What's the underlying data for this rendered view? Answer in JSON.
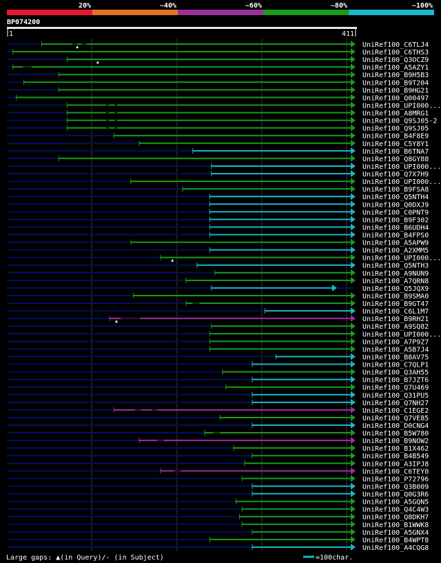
{
  "chart_data": {
    "type": "alignment-coverage",
    "query_id": "BP074200",
    "query_start": 1,
    "query_end": 411,
    "legend": {
      "identity_bins": [
        {
          "label": "20%",
          "color": "#e8162e"
        },
        {
          "label": "~40%",
          "color": "#e07420"
        },
        {
          "label": "~60%",
          "color": "#9b2f9a"
        },
        {
          "label": "~80%",
          "color": "#1a9b1a"
        },
        {
          "label": "~100%",
          "color": "#18b8c8"
        }
      ],
      "gap_legend": "Large gaps: ▲(in Query)/- (in Subject)",
      "scale_legend": "=100char."
    },
    "colors": {
      "background": "#000000",
      "shadow": "#001060",
      "grid": "#3a3a3a",
      "green": "#1a9b1a",
      "cyan": "#18b8c8",
      "magenta": "#9b2f9a",
      "query_bar": "#e6e6e6"
    },
    "hits": [
      {
        "name": "UniRef100_C6TLJ4",
        "start": 42,
        "end": 411,
        "color": "green",
        "gaps": [
          [
            78,
            84
          ],
          [
            89,
            95
          ]
        ],
        "qmarks": [
          84
        ]
      },
      {
        "name": "UniRef100_C6THS3",
        "start": 8,
        "end": 411,
        "color": "green",
        "gaps": [],
        "qmarks": []
      },
      {
        "name": "UniRef100_Q3OCZ9",
        "start": 72,
        "end": 411,
        "color": "green",
        "gaps": [],
        "qmarks": [
          108
        ]
      },
      {
        "name": "UniRef100_A5AZY1",
        "start": 8,
        "end": 411,
        "color": "green",
        "gaps": [
          [
            20,
            30
          ]
        ],
        "qmarks": []
      },
      {
        "name": "UniRef100_B9H5B3",
        "start": 62,
        "end": 411,
        "color": "green",
        "gaps": [],
        "qmarks": []
      },
      {
        "name": "UniRef100_B9T204",
        "start": 21,
        "end": 411,
        "color": "green",
        "gaps": [],
        "qmarks": []
      },
      {
        "name": "UniRef100_B9HG21",
        "start": 62,
        "end": 411,
        "color": "green",
        "gaps": [],
        "qmarks": []
      },
      {
        "name": "UniRef100_Q00497",
        "start": 12,
        "end": 411,
        "color": "green",
        "gaps": [],
        "qmarks": []
      },
      {
        "name": "UniRef100_UPI000...",
        "start": 72,
        "end": 411,
        "color": "green",
        "gaps": [
          [
            118,
            121
          ],
          [
            128,
            131
          ]
        ],
        "qmarks": []
      },
      {
        "name": "UniRef100_A8MRG1",
        "start": 72,
        "end": 411,
        "color": "green",
        "gaps": [
          [
            118,
            121
          ],
          [
            128,
            131
          ]
        ],
        "qmarks": []
      },
      {
        "name": "UniRef100_Q9SJ05-2",
        "start": 72,
        "end": 411,
        "color": "green",
        "gaps": [
          [
            118,
            121
          ],
          [
            128,
            131
          ]
        ],
        "qmarks": []
      },
      {
        "name": "UniRef100_Q9SJ05",
        "start": 72,
        "end": 411,
        "color": "green",
        "gaps": [
          [
            118,
            121
          ],
          [
            128,
            131
          ]
        ],
        "qmarks": []
      },
      {
        "name": "UniRef100_B4F8E9",
        "start": 127,
        "end": 411,
        "color": "green",
        "gaps": [],
        "qmarks": []
      },
      {
        "name": "UniRef100_C5Y8Y1",
        "start": 157,
        "end": 411,
        "color": "green",
        "gaps": [],
        "qmarks": []
      },
      {
        "name": "UniRef100_B6TNA7",
        "start": 220,
        "end": 411,
        "color": "cyan",
        "gaps": [],
        "qmarks": []
      },
      {
        "name": "UniRef100_Q8GY88",
        "start": 62,
        "end": 411,
        "color": "green",
        "gaps": [],
        "qmarks": []
      },
      {
        "name": "UniRef100_UPI000...",
        "start": 242,
        "end": 411,
        "color": "cyan",
        "gaps": [],
        "qmarks": []
      },
      {
        "name": "UniRef100_Q7X7H9",
        "start": 242,
        "end": 411,
        "color": "cyan",
        "gaps": [],
        "qmarks": []
      },
      {
        "name": "UniRef100_UPI000...",
        "start": 147,
        "end": 411,
        "color": "green",
        "gaps": [],
        "qmarks": []
      },
      {
        "name": "UniRef100_B9FSA8",
        "start": 208,
        "end": 411,
        "color": "green",
        "gaps": [],
        "qmarks": []
      },
      {
        "name": "UniRef100_Q5NTH4",
        "start": 240,
        "end": 411,
        "color": "cyan",
        "gaps": [],
        "qmarks": []
      },
      {
        "name": "UniRef100_Q0DXJ9",
        "start": 240,
        "end": 411,
        "color": "cyan",
        "gaps": [],
        "qmarks": []
      },
      {
        "name": "UniRef100_C0PNT9",
        "start": 240,
        "end": 411,
        "color": "cyan",
        "gaps": [],
        "qmarks": []
      },
      {
        "name": "UniRef100_B9F302",
        "start": 240,
        "end": 411,
        "color": "cyan",
        "gaps": [],
        "qmarks": []
      },
      {
        "name": "UniRef100_B6UDH4",
        "start": 240,
        "end": 411,
        "color": "cyan",
        "gaps": [],
        "qmarks": []
      },
      {
        "name": "UniRef100_B4FPS0",
        "start": 240,
        "end": 411,
        "color": "cyan",
        "gaps": [],
        "qmarks": []
      },
      {
        "name": "UniRef100_A5APW9",
        "start": 147,
        "end": 411,
        "color": "green",
        "gaps": [],
        "qmarks": []
      },
      {
        "name": "UniRef100_A2XMM5",
        "start": 240,
        "end": 411,
        "color": "cyan",
        "gaps": [],
        "qmarks": []
      },
      {
        "name": "UniRef100_UPI000...",
        "start": 182,
        "end": 411,
        "color": "green",
        "gaps": [],
        "qmarks": [
          196
        ]
      },
      {
        "name": "UniRef100_Q5NTH3",
        "start": 225,
        "end": 411,
        "color": "cyan",
        "gaps": [],
        "qmarks": []
      },
      {
        "name": "UniRef100_A9NUN9",
        "start": 246,
        "end": 411,
        "color": "green",
        "gaps": [],
        "qmarks": []
      },
      {
        "name": "UniRef100_A7QRN8",
        "start": 212,
        "end": 411,
        "color": "green",
        "gaps": [],
        "qmarks": []
      },
      {
        "name": "UniRef100_Q5JQX9",
        "start": 242,
        "end": 389,
        "color": "cyan",
        "gaps": [],
        "qmarks": []
      },
      {
        "name": "UniRef100_B9SMA0",
        "start": 150,
        "end": 411,
        "color": "green",
        "gaps": [],
        "qmarks": []
      },
      {
        "name": "UniRef100_B9GT47",
        "start": 212,
        "end": 411,
        "color": "green",
        "gaps": [
          [
            220,
            228
          ]
        ],
        "qmarks": []
      },
      {
        "name": "UniRef100_C6L1M7",
        "start": 305,
        "end": 411,
        "color": "cyan",
        "gaps": [],
        "qmarks": []
      },
      {
        "name": "UniRef100_B9RH21",
        "start": 122,
        "end": 411,
        "color": "magenta",
        "gaps": [
          [
            135,
            158
          ]
        ],
        "qmarks": [
          130
        ]
      },
      {
        "name": "UniRef100_A9SQ82",
        "start": 242,
        "end": 411,
        "color": "green",
        "gaps": [],
        "qmarks": []
      },
      {
        "name": "UniRef100_UPI000...",
        "start": 240,
        "end": 411,
        "color": "green",
        "gaps": [],
        "qmarks": []
      },
      {
        "name": "UniRef100_A7P9Z7",
        "start": 240,
        "end": 411,
        "color": "green",
        "gaps": [],
        "qmarks": []
      },
      {
        "name": "UniRef100_A5B7J4",
        "start": 240,
        "end": 411,
        "color": "green",
        "gaps": [],
        "qmarks": []
      },
      {
        "name": "UniRef100_B8AV75",
        "start": 318,
        "end": 411,
        "color": "cyan",
        "gaps": [],
        "qmarks": []
      },
      {
        "name": "UniRef100_C7QLP1",
        "start": 290,
        "end": 411,
        "color": "cyan",
        "gaps": [],
        "qmarks": []
      },
      {
        "name": "UniRef100_Q3AH55",
        "start": 255,
        "end": 411,
        "color": "green",
        "gaps": [],
        "qmarks": []
      },
      {
        "name": "UniRef100_B7JZT6",
        "start": 290,
        "end": 411,
        "color": "cyan",
        "gaps": [],
        "qmarks": []
      },
      {
        "name": "UniRef100_Q7U469",
        "start": 259,
        "end": 411,
        "color": "green",
        "gaps": [],
        "qmarks": []
      },
      {
        "name": "UniRef100_Q31PU5",
        "start": 290,
        "end": 411,
        "color": "cyan",
        "gaps": [],
        "qmarks": []
      },
      {
        "name": "UniRef100_Q7NH27",
        "start": 290,
        "end": 411,
        "color": "cyan",
        "gaps": [],
        "qmarks": []
      },
      {
        "name": "UniRef100_C1EGE2",
        "start": 127,
        "end": 411,
        "color": "magenta",
        "gaps": [
          [
            152,
            159
          ],
          [
            172,
            178
          ]
        ],
        "qmarks": []
      },
      {
        "name": "UniRef100_Q7VE85",
        "start": 252,
        "end": 411,
        "color": "green",
        "gaps": [],
        "qmarks": []
      },
      {
        "name": "UniRef100_D0CNG4",
        "start": 290,
        "end": 411,
        "color": "cyan",
        "gaps": [],
        "qmarks": []
      },
      {
        "name": "UniRef100_B5W780",
        "start": 234,
        "end": 411,
        "color": "green",
        "gaps": [
          [
            244,
            252
          ]
        ],
        "qmarks": []
      },
      {
        "name": "UniRef100_B9NOW2",
        "start": 157,
        "end": 411,
        "color": "magenta",
        "gaps": [
          [
            178,
            186
          ]
        ],
        "qmarks": []
      },
      {
        "name": "UniRef100_B1X462",
        "start": 268,
        "end": 411,
        "color": "green",
        "gaps": [],
        "qmarks": []
      },
      {
        "name": "UniRef100_B4B549",
        "start": 290,
        "end": 411,
        "color": "green",
        "gaps": [],
        "qmarks": []
      },
      {
        "name": "UniRef100_A3IPJ8",
        "start": 281,
        "end": 411,
        "color": "green",
        "gaps": [],
        "qmarks": []
      },
      {
        "name": "UniRef100_C6TEY0",
        "start": 182,
        "end": 411,
        "color": "magenta",
        "gaps": [
          [
            198,
            206
          ]
        ],
        "qmarks": []
      },
      {
        "name": "UniRef100_P72796",
        "start": 278,
        "end": 411,
        "color": "green",
        "gaps": [],
        "qmarks": []
      },
      {
        "name": "UniRef100_Q3B009",
        "start": 290,
        "end": 411,
        "color": "cyan",
        "gaps": [],
        "qmarks": []
      },
      {
        "name": "UniRef100_Q0G3R6",
        "start": 290,
        "end": 411,
        "color": "cyan",
        "gaps": [],
        "qmarks": []
      },
      {
        "name": "UniRef100_A5GQN5",
        "start": 271,
        "end": 411,
        "color": "green",
        "gaps": [],
        "qmarks": []
      },
      {
        "name": "UniRef100_Q4C4W3",
        "start": 278,
        "end": 411,
        "color": "green",
        "gaps": [],
        "qmarks": []
      },
      {
        "name": "UniRef100_Q8DKH7",
        "start": 275,
        "end": 411,
        "color": "green",
        "gaps": [],
        "qmarks": []
      },
      {
        "name": "UniRef100_B1WWK8",
        "start": 278,
        "end": 411,
        "color": "green",
        "gaps": [],
        "qmarks": []
      },
      {
        "name": "UniRef100_A5GNX4",
        "start": 290,
        "end": 411,
        "color": "green",
        "gaps": [],
        "qmarks": []
      },
      {
        "name": "UniRef100_B4WPT8",
        "start": 240,
        "end": 411,
        "color": "green",
        "gaps": [],
        "qmarks": []
      },
      {
        "name": "UniRef100_A4CQG8",
        "start": 290,
        "end": 411,
        "color": "cyan",
        "gaps": [],
        "qmarks": []
      }
    ]
  }
}
